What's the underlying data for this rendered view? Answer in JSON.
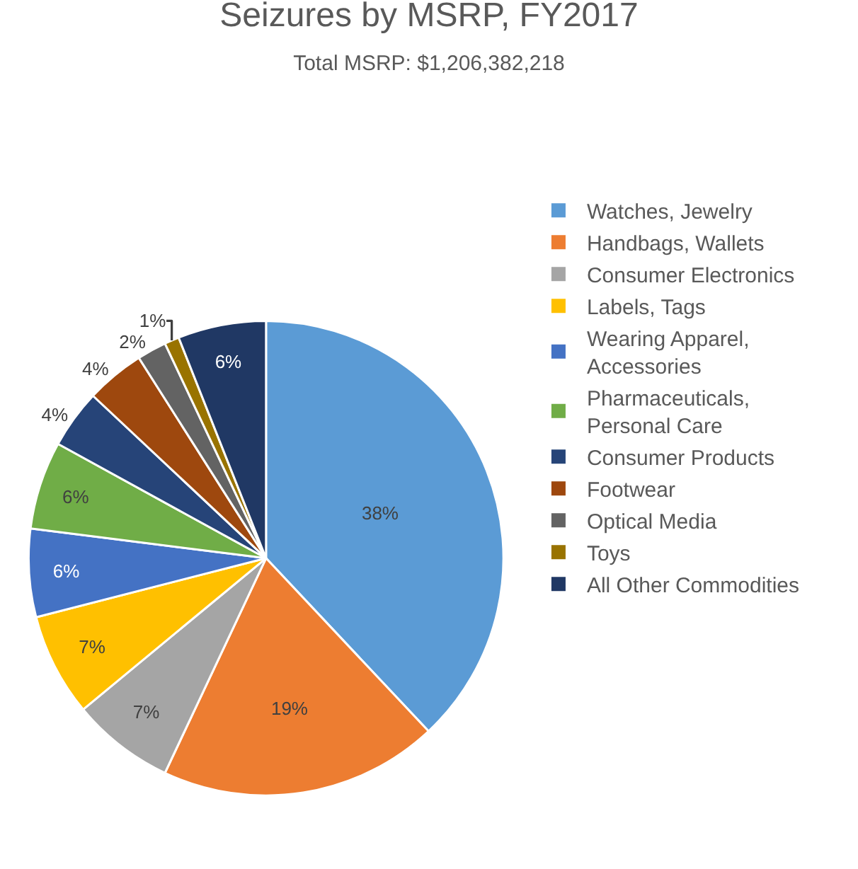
{
  "chart_data": {
    "type": "pie",
    "title": "Seizures by MSRP, FY2017",
    "subtitle": "Total MSRP: $1,206,382,218",
    "categories": [
      "Watches, Jewelry",
      "Handbags, Wallets",
      "Consumer Electronics",
      "Labels, Tags",
      "Wearing Apparel, Accessories",
      "Pharmaceuticals, Personal Care",
      "Consumer Products",
      "Footwear",
      "Optical Media",
      "Toys",
      "All Other Commodities"
    ],
    "values": [
      38,
      19,
      7,
      7,
      6,
      6,
      4,
      4,
      2,
      1,
      6
    ],
    "colors": [
      "#5b9bd5",
      "#ed7d31",
      "#a5a5a5",
      "#ffc000",
      "#4472c4",
      "#70ad47",
      "#264478",
      "#9e480e",
      "#636363",
      "#997300",
      "#203864"
    ],
    "value_labels": [
      "38%",
      "19%",
      "7%",
      "7%",
      "6%",
      "6%",
      "4%",
      "4%",
      "2%",
      "1%",
      "6%"
    ],
    "legend": "right"
  }
}
